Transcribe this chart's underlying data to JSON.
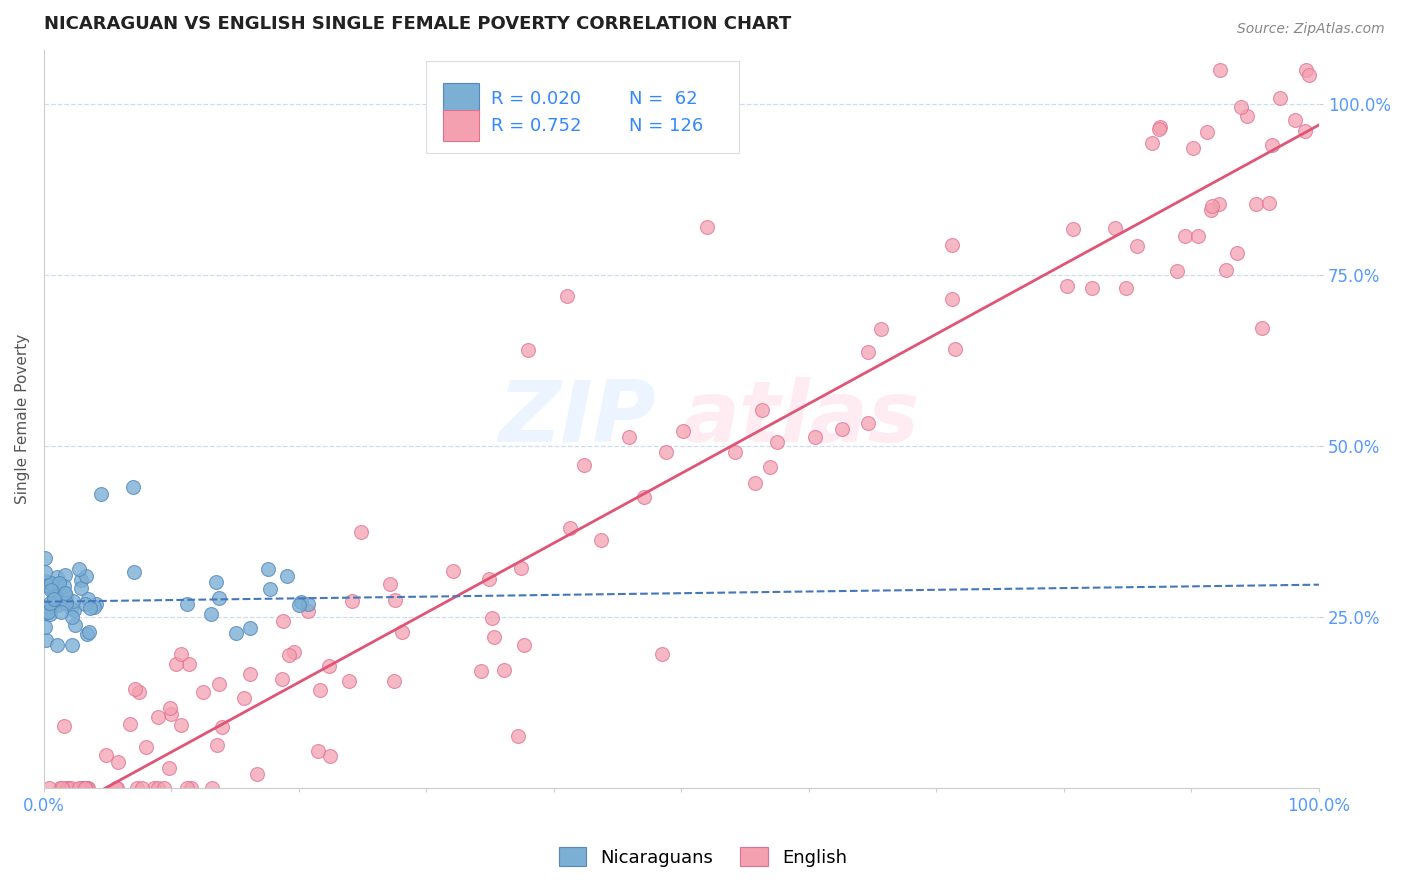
{
  "title": "NICARAGUAN VS ENGLISH SINGLE FEMALE POVERTY CORRELATION CHART",
  "source_text": "Source: ZipAtlas.com",
  "ylabel": "Single Female Poverty",
  "watermark_zip": "ZIP",
  "watermark_atlas": "atlas",
  "nicaraguan_R": 0.02,
  "nicaraguan_N": 62,
  "english_R": 0.752,
  "english_N": 126,
  "title_color": "#222222",
  "title_fontsize": 13,
  "blue_marker_color": "#7BAFD4",
  "blue_edge_color": "#5588BB",
  "pink_marker_color": "#F4A0B0",
  "pink_edge_color": "#E07090",
  "blue_line_color": "#4477BB",
  "pink_line_color": "#E05575",
  "legend_value_color": "#3388FF",
  "legend_label_color": "#222222",
  "axis_tick_color": "#5599FF",
  "grid_color": "#CCDDEE",
  "background_color": "#FFFFFF",
  "source_color": "#888888"
}
